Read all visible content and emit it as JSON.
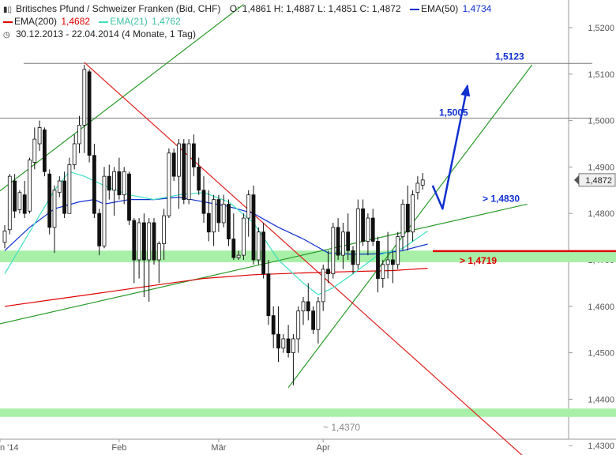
{
  "header": {
    "instrument": "Britisches Pfund / Schweizer Franken (Bid, CHF)",
    "ohlc": "O: 1,4861  H: 1,4887  L: 1,4851  C: 1,4872",
    "ema50_label": "EMA(50)",
    "ema50_value": "1,4734",
    "ema200_label": "EMA(200)",
    "ema200_value": "1,4682",
    "ema21_label": "EMA(21)",
    "ema21_value": "1,4762",
    "period": "30.12.2013 - 22.04.2014 (4 Monate, 1 Tag)",
    "chart_icon": "candlestick-icon",
    "clock_icon": "clock-icon"
  },
  "colors": {
    "ema200": "#e00000",
    "ema21": "#40e0c0",
    "ema50": "#1030d0",
    "trend_green": "#2a9a2a",
    "trend_red": "#e02020",
    "support_band": "#a8f0a8",
    "projection": "#1030d0",
    "last_price_box": "#f0f0f0"
  },
  "chart_data": {
    "type": "candlestick",
    "title": "Britisches Pfund / Schweizer Franken (Bid, CHF)",
    "ylim": [
      1.427,
      1.525
    ],
    "y_ticks": [
      "1,5200",
      "1,5100",
      "1,5000",
      "1,4900",
      "1,4800",
      "1,4700",
      "1,4600",
      "1,4500",
      "1,4400",
      "1,4300"
    ],
    "x_ticks": [
      {
        "label": "n '14",
        "index": 0
      },
      {
        "label": "Feb",
        "index": 23
      },
      {
        "label": "Mär",
        "index": 43
      },
      {
        "label": "Apr",
        "index": 64
      }
    ],
    "last_price": "1,4872",
    "candles": [
      {
        "o": 1.4738,
        "h": 1.4775,
        "l": 1.4725,
        "c": 1.4762
      },
      {
        "o": 1.4765,
        "h": 1.4885,
        "l": 1.4755,
        "c": 1.488
      },
      {
        "o": 1.487,
        "h": 1.4885,
        "l": 1.479,
        "c": 1.4805
      },
      {
        "o": 1.4808,
        "h": 1.485,
        "l": 1.48,
        "c": 1.4845
      },
      {
        "o": 1.484,
        "h": 1.487,
        "l": 1.479,
        "c": 1.48
      },
      {
        "o": 1.4805,
        "h": 1.492,
        "l": 1.48,
        "c": 1.4915
      },
      {
        "o": 1.491,
        "h": 1.4985,
        "l": 1.4895,
        "c": 1.496
      },
      {
        "o": 1.495,
        "h": 1.5,
        "l": 1.4935,
        "c": 1.4985
      },
      {
        "o": 1.498,
        "h": 1.4985,
        "l": 1.488,
        "c": 1.489
      },
      {
        "o": 1.4885,
        "h": 1.4895,
        "l": 1.4755,
        "c": 1.477
      },
      {
        "o": 1.477,
        "h": 1.486,
        "l": 1.4715,
        "c": 1.485
      },
      {
        "o": 1.4845,
        "h": 1.488,
        "l": 1.4835,
        "c": 1.487
      },
      {
        "o": 1.487,
        "h": 1.489,
        "l": 1.479,
        "c": 1.48
      },
      {
        "o": 1.48,
        "h": 1.492,
        "l": 1.48,
        "c": 1.4905
      },
      {
        "o": 1.4905,
        "h": 1.497,
        "l": 1.4895,
        "c": 1.495
      },
      {
        "o": 1.495,
        "h": 1.501,
        "l": 1.493,
        "c": 1.499
      },
      {
        "o": 1.499,
        "h": 1.512,
        "l": 1.493,
        "c": 1.511
      },
      {
        "o": 1.5105,
        "h": 1.511,
        "l": 1.491,
        "c": 1.4925
      },
      {
        "o": 1.4925,
        "h": 1.495,
        "l": 1.479,
        "c": 1.48
      },
      {
        "o": 1.48,
        "h": 1.481,
        "l": 1.471,
        "c": 1.473
      },
      {
        "o": 1.473,
        "h": 1.49,
        "l": 1.4725,
        "c": 1.488
      },
      {
        "o": 1.488,
        "h": 1.4905,
        "l": 1.483,
        "c": 1.485
      },
      {
        "o": 1.485,
        "h": 1.49,
        "l": 1.4795,
        "c": 1.489
      },
      {
        "o": 1.489,
        "h": 1.492,
        "l": 1.483,
        "c": 1.484
      },
      {
        "o": 1.484,
        "h": 1.49,
        "l": 1.482,
        "c": 1.489
      },
      {
        "o": 1.4885,
        "h": 1.489,
        "l": 1.4775,
        "c": 1.4785
      },
      {
        "o": 1.4785,
        "h": 1.479,
        "l": 1.465,
        "c": 1.47
      },
      {
        "o": 1.47,
        "h": 1.479,
        "l": 1.466,
        "c": 1.478
      },
      {
        "o": 1.478,
        "h": 1.48,
        "l": 1.462,
        "c": 1.47
      },
      {
        "o": 1.47,
        "h": 1.479,
        "l": 1.461,
        "c": 1.478
      },
      {
        "o": 1.478,
        "h": 1.479,
        "l": 1.469,
        "c": 1.47
      },
      {
        "o": 1.47,
        "h": 1.474,
        "l": 1.465,
        "c": 1.4735
      },
      {
        "o": 1.4735,
        "h": 1.481,
        "l": 1.47,
        "c": 1.4795
      },
      {
        "o": 1.4795,
        "h": 1.494,
        "l": 1.479,
        "c": 1.493
      },
      {
        "o": 1.493,
        "h": 1.494,
        "l": 1.487,
        "c": 1.488
      },
      {
        "o": 1.488,
        "h": 1.496,
        "l": 1.481,
        "c": 1.495
      },
      {
        "o": 1.495,
        "h": 1.496,
        "l": 1.482,
        "c": 1.483
      },
      {
        "o": 1.483,
        "h": 1.496,
        "l": 1.482,
        "c": 1.495
      },
      {
        "o": 1.495,
        "h": 1.497,
        "l": 1.488,
        "c": 1.49
      },
      {
        "o": 1.49,
        "h": 1.492,
        "l": 1.484,
        "c": 1.485
      },
      {
        "o": 1.485,
        "h": 1.488,
        "l": 1.478,
        "c": 1.48
      },
      {
        "o": 1.48,
        "h": 1.485,
        "l": 1.474,
        "c": 1.476
      },
      {
        "o": 1.476,
        "h": 1.484,
        "l": 1.473,
        "c": 1.483
      },
      {
        "o": 1.483,
        "h": 1.484,
        "l": 1.476,
        "c": 1.478
      },
      {
        "o": 1.478,
        "h": 1.484,
        "l": 1.477,
        "c": 1.482
      },
      {
        "o": 1.482,
        "h": 1.483,
        "l": 1.473,
        "c": 1.4745
      },
      {
        "o": 1.4745,
        "h": 1.48,
        "l": 1.47,
        "c": 1.4705
      },
      {
        "o": 1.4705,
        "h": 1.472,
        "l": 1.47,
        "c": 1.471
      },
      {
        "o": 1.471,
        "h": 1.48,
        "l": 1.47,
        "c": 1.479
      },
      {
        "o": 1.479,
        "h": 1.485,
        "l": 1.475,
        "c": 1.484
      },
      {
        "o": 1.484,
        "h": 1.486,
        "l": 1.469,
        "c": 1.47
      },
      {
        "o": 1.47,
        "h": 1.477,
        "l": 1.469,
        "c": 1.476
      },
      {
        "o": 1.476,
        "h": 1.478,
        "l": 1.466,
        "c": 1.467
      },
      {
        "o": 1.467,
        "h": 1.47,
        "l": 1.456,
        "c": 1.458
      },
      {
        "o": 1.458,
        "h": 1.46,
        "l": 1.451,
        "c": 1.454
      },
      {
        "o": 1.454,
        "h": 1.46,
        "l": 1.448,
        "c": 1.451
      },
      {
        "o": 1.451,
        "h": 1.454,
        "l": 1.45,
        "c": 1.453
      },
      {
        "o": 1.453,
        "h": 1.456,
        "l": 1.449,
        "c": 1.45
      },
      {
        "o": 1.45,
        "h": 1.454,
        "l": 1.443,
        "c": 1.453
      },
      {
        "o": 1.453,
        "h": 1.46,
        "l": 1.45,
        "c": 1.459
      },
      {
        "o": 1.459,
        "h": 1.462,
        "l": 1.456,
        "c": 1.461
      },
      {
        "o": 1.461,
        "h": 1.465,
        "l": 1.457,
        "c": 1.459
      },
      {
        "o": 1.459,
        "h": 1.46,
        "l": 1.454,
        "c": 1.455
      },
      {
        "o": 1.455,
        "h": 1.462,
        "l": 1.452,
        "c": 1.461
      },
      {
        "o": 1.461,
        "h": 1.469,
        "l": 1.459,
        "c": 1.468
      },
      {
        "o": 1.468,
        "h": 1.472,
        "l": 1.465,
        "c": 1.467
      },
      {
        "o": 1.467,
        "h": 1.478,
        "l": 1.466,
        "c": 1.477
      },
      {
        "o": 1.477,
        "h": 1.479,
        "l": 1.47,
        "c": 1.471
      },
      {
        "o": 1.471,
        "h": 1.478,
        "l": 1.468,
        "c": 1.476
      },
      {
        "o": 1.476,
        "h": 1.48,
        "l": 1.47,
        "c": 1.472
      },
      {
        "o": 1.472,
        "h": 1.473,
        "l": 1.467,
        "c": 1.469
      },
      {
        "o": 1.469,
        "h": 1.483,
        "l": 1.468,
        "c": 1.481
      },
      {
        "o": 1.481,
        "h": 1.483,
        "l": 1.473,
        "c": 1.474
      },
      {
        "o": 1.474,
        "h": 1.48,
        "l": 1.471,
        "c": 1.479
      },
      {
        "o": 1.479,
        "h": 1.481,
        "l": 1.473,
        "c": 1.474
      },
      {
        "o": 1.474,
        "h": 1.475,
        "l": 1.463,
        "c": 1.466
      },
      {
        "o": 1.466,
        "h": 1.47,
        "l": 1.464,
        "c": 1.469
      },
      {
        "o": 1.469,
        "h": 1.476,
        "l": 1.466,
        "c": 1.47
      },
      {
        "o": 1.47,
        "h": 1.472,
        "l": 1.465,
        "c": 1.469
      },
      {
        "o": 1.469,
        "h": 1.476,
        "l": 1.468,
        "c": 1.475
      },
      {
        "o": 1.475,
        "h": 1.483,
        "l": 1.472,
        "c": 1.482
      },
      {
        "o": 1.482,
        "h": 1.486,
        "l": 1.472,
        "c": 1.476
      },
      {
        "o": 1.476,
        "h": 1.485,
        "l": 1.474,
        "c": 1.484
      },
      {
        "o": 1.4845,
        "h": 1.488,
        "l": 1.483,
        "c": 1.4865
      },
      {
        "o": 1.4861,
        "h": 1.4887,
        "l": 1.4851,
        "c": 1.4872
      }
    ],
    "series": [
      {
        "name": "EMA(200)",
        "color": "#e00000",
        "points": [
          [
            0,
            1.46
          ],
          [
            10,
            1.4615
          ],
          [
            20,
            1.463
          ],
          [
            30,
            1.4645
          ],
          [
            40,
            1.466
          ],
          [
            50,
            1.4668
          ],
          [
            60,
            1.4672
          ],
          [
            70,
            1.4675
          ],
          [
            78,
            1.4677
          ],
          [
            85,
            1.4682
          ]
        ]
      },
      {
        "name": "EMA(50)",
        "color": "#1030d0",
        "points": [
          [
            0,
            1.472
          ],
          [
            5,
            1.477
          ],
          [
            10,
            1.481
          ],
          [
            15,
            1.4825
          ],
          [
            18,
            1.483
          ],
          [
            20,
            1.482
          ],
          [
            25,
            1.483
          ],
          [
            30,
            1.483
          ],
          [
            35,
            1.4835
          ],
          [
            40,
            1.4825
          ],
          [
            45,
            1.4815
          ],
          [
            50,
            1.48
          ],
          [
            55,
            1.477
          ],
          [
            60,
            1.4745
          ],
          [
            65,
            1.4715
          ],
          [
            70,
            1.4712
          ],
          [
            75,
            1.4713
          ],
          [
            80,
            1.472
          ],
          [
            85,
            1.4734
          ]
        ]
      },
      {
        "name": "EMA(21)",
        "color": "#40e0c0",
        "points": [
          [
            0,
            1.467
          ],
          [
            5,
            1.476
          ],
          [
            10,
            1.485
          ],
          [
            13,
            1.489
          ],
          [
            16,
            1.488
          ],
          [
            20,
            1.486
          ],
          [
            25,
            1.484
          ],
          [
            30,
            1.483
          ],
          [
            35,
            1.484
          ],
          [
            40,
            1.4845
          ],
          [
            45,
            1.4825
          ],
          [
            50,
            1.478
          ],
          [
            55,
            1.47
          ],
          [
            60,
            1.465
          ],
          [
            63,
            1.4625
          ],
          [
            66,
            1.464
          ],
          [
            70,
            1.467
          ],
          [
            75,
            1.471
          ],
          [
            80,
            1.4725
          ],
          [
            85,
            1.4762
          ]
        ]
      }
    ],
    "annotations": [
      {
        "label": "1,5123",
        "value": 1.5123,
        "color": "#1030d0"
      },
      {
        "label": "1,5005",
        "value": 1.5005,
        "color": "#1030d0"
      },
      {
        "label": "> 1,4830",
        "value": 1.483,
        "color": "#1030d0"
      },
      {
        "label": "> 1,4719",
        "value": 1.4719,
        "color": "#e00000"
      },
      {
        "label": "~ 1,4370",
        "value": 1.437,
        "color": "#888888"
      }
    ],
    "support_zones": [
      {
        "low": 1.4695,
        "high": 1.472
      },
      {
        "low": 1.4362,
        "high": 1.438
      }
    ],
    "resistance_lines": [
      1.5123,
      1.5005
    ],
    "trendlines": [
      {
        "name": "green-channel-upper",
        "color": "#2a9a2a",
        "from": [
          -2,
          1.484
        ],
        "to": [
          48,
          1.525
        ]
      },
      {
        "name": "green-long-support",
        "color": "#2a9a2a",
        "from": [
          -2,
          1.456
        ],
        "to": [
          105,
          1.482
        ]
      },
      {
        "name": "green-steep-support",
        "color": "#2a9a2a",
        "from": [
          57,
          1.4425
        ],
        "to": [
          106,
          1.512
        ]
      },
      {
        "name": "red-downtrend",
        "color": "#e02020",
        "from": [
          16,
          1.5125
        ],
        "to": [
          106,
          1.426
        ]
      },
      {
        "name": "blue-projection",
        "color": "#1030d0",
        "points": [
          [
            86,
            1.486
          ],
          [
            88,
            1.481
          ],
          [
            93,
            1.5075
          ]
        ]
      }
    ]
  }
}
